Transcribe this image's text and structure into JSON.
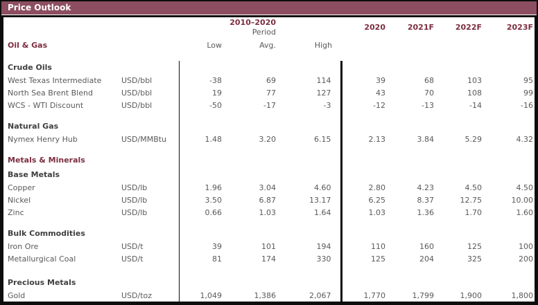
{
  "title_bar": {
    "title": "Price Outlook"
  },
  "colors": {
    "title_bar_bg": "#8d4e61",
    "accent_maroon": "#7c2d40",
    "subheader_gray": "#3f3f3f",
    "text_gray": "#595959",
    "border_black": "#0d0d0d",
    "background": "#ffffff"
  },
  "chart_data": {
    "type": "table",
    "title": "Price Outlook",
    "period_group": {
      "label": "2010–2020",
      "sublabel": "Period",
      "columns": [
        "Low",
        "Avg.",
        "High"
      ]
    },
    "year_columns": [
      "2020",
      "2021F",
      "2022F",
      "2023F"
    ],
    "sections": [
      {
        "name": "Oil & Gas",
        "subsections": [
          {
            "name": "Crude Oils",
            "rows": [
              {
                "label": "West Texas Intermediate",
                "unit": "USD/bbl",
                "values": [
                  "-38",
                  "69",
                  "114",
                  "39",
                  "68",
                  "103",
                  "95"
                ]
              },
              {
                "label": "North Sea Brent Blend",
                "unit": "USD/bbl",
                "values": [
                  "19",
                  "77",
                  "127",
                  "43",
                  "70",
                  "108",
                  "99"
                ]
              },
              {
                "label": "WCS - WTI Discount",
                "unit": "USD/bbl",
                "values": [
                  "-50",
                  "-17",
                  "-3",
                  "-12",
                  "-13",
                  "-14",
                  "-16"
                ]
              }
            ]
          },
          {
            "name": "Natural Gas",
            "rows": [
              {
                "label": "Nymex Henry Hub",
                "unit": "USD/MMBtu",
                "values": [
                  "1.48",
                  "3.20",
                  "6.15",
                  "2.13",
                  "3.84",
                  "5.29",
                  "4.32"
                ]
              }
            ]
          }
        ]
      },
      {
        "name": "Metals & Minerals",
        "subsections": [
          {
            "name": "Base Metals",
            "rows": [
              {
                "label": "Copper",
                "unit": "USD/lb",
                "values": [
                  "1.96",
                  "3.04",
                  "4.60",
                  "2.80",
                  "4.23",
                  "4.50",
                  "4.50"
                ]
              },
              {
                "label": "Nickel",
                "unit": "USD/lb",
                "values": [
                  "3.50",
                  "6.87",
                  "13.17",
                  "6.25",
                  "8.37",
                  "12.75",
                  "10.00"
                ]
              },
              {
                "label": "Zinc",
                "unit": "USD/lb",
                "values": [
                  "0.66",
                  "1.03",
                  "1.64",
                  "1.03",
                  "1.36",
                  "1.70",
                  "1.60"
                ]
              }
            ]
          },
          {
            "name": "Bulk Commodities",
            "rows": [
              {
                "label": "Iron Ore",
                "unit": "USD/t",
                "values": [
                  "39",
                  "101",
                  "194",
                  "110",
                  "160",
                  "125",
                  "100"
                ]
              },
              {
                "label": "Metallurgical Coal",
                "unit": "USD/t",
                "values": [
                  "81",
                  "174",
                  "330",
                  "125",
                  "204",
                  "325",
                  "200"
                ]
              }
            ]
          },
          {
            "name": "Precious Metals",
            "rows": [
              {
                "label": "Gold",
                "unit": "USD/toz",
                "values": [
                  "1,049",
                  "1,386",
                  "2,067",
                  "1,770",
                  "1,799",
                  "1,900",
                  "1,800"
                ]
              }
            ]
          }
        ]
      }
    ]
  }
}
